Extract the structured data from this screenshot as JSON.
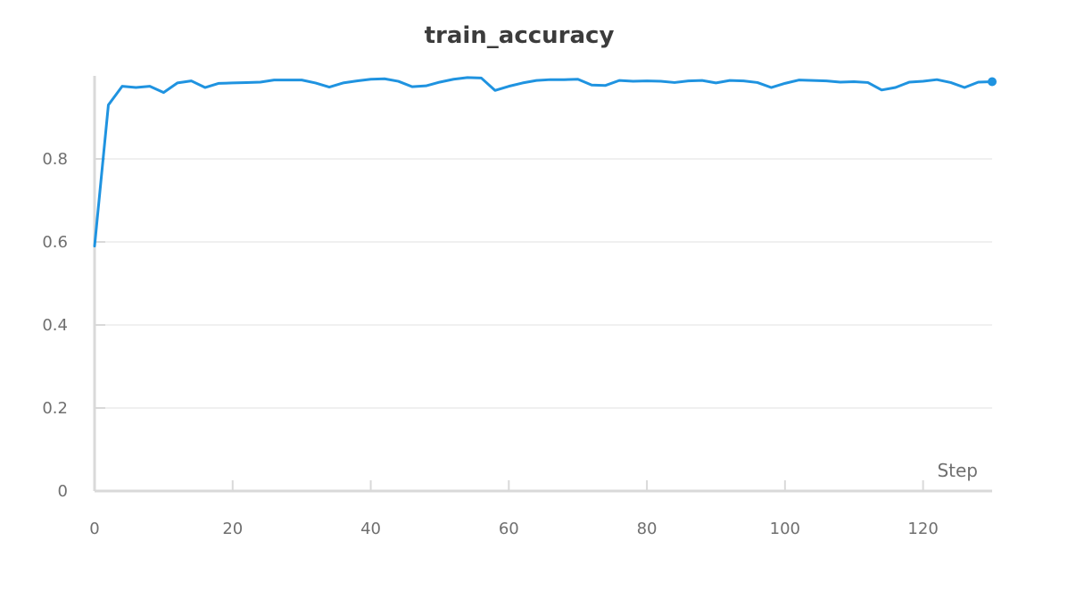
{
  "chart_data": {
    "type": "line",
    "title": "train_accuracy",
    "xlabel": "Step",
    "ylabel": "",
    "xlim": [
      0,
      130
    ],
    "ylim": [
      0,
      1.0
    ],
    "x_ticks": [
      0,
      20,
      40,
      60,
      80,
      100,
      120
    ],
    "y_ticks": [
      0,
      0.2,
      0.4,
      0.6,
      0.8
    ],
    "x_tick_labels": [
      "0",
      "20",
      "40",
      "60",
      "80",
      "100",
      "120"
    ],
    "y_tick_labels": [
      "0",
      "0.2",
      "0.4",
      "0.6",
      "0.8"
    ],
    "grid": true,
    "legend": "none",
    "series": [
      {
        "color": "#1f93e0",
        "x": [
          0,
          2,
          4,
          6,
          8,
          10,
          12,
          14,
          16,
          18,
          20,
          22,
          24,
          26,
          28,
          30,
          32,
          34,
          36,
          38,
          40,
          42,
          44,
          46,
          48,
          50,
          52,
          54,
          56,
          58,
          60,
          62,
          64,
          66,
          68,
          70,
          72,
          74,
          76,
          78,
          80,
          82,
          84,
          86,
          88,
          90,
          92,
          94,
          96,
          98,
          100,
          102,
          104,
          106,
          108,
          110,
          112,
          114,
          116,
          118,
          120,
          122,
          124,
          126,
          128,
          130
        ],
        "y": [
          0.59,
          0.93,
          0.975,
          0.972,
          0.975,
          0.96,
          0.983,
          0.988,
          0.972,
          0.982,
          0.983,
          0.984,
          0.985,
          0.99,
          0.99,
          0.99,
          0.983,
          0.973,
          0.983,
          0.988,
          0.992,
          0.993,
          0.987,
          0.974,
          0.976,
          0.985,
          0.992,
          0.996,
          0.995,
          0.965,
          0.975,
          0.983,
          0.989,
          0.991,
          0.991,
          0.992,
          0.978,
          0.977,
          0.989,
          0.987,
          0.988,
          0.987,
          0.984,
          0.988,
          0.989,
          0.983,
          0.989,
          0.988,
          0.984,
          0.972,
          0.982,
          0.99,
          0.989,
          0.988,
          0.985,
          0.986,
          0.984,
          0.966,
          0.972,
          0.985,
          0.987,
          0.991,
          0.984,
          0.972,
          0.985,
          0.986
        ]
      }
    ]
  }
}
